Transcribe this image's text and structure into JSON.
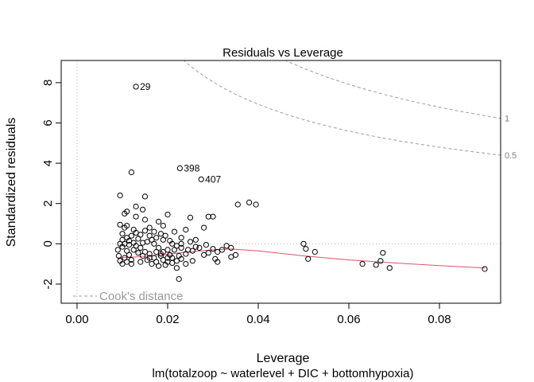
{
  "chart_data": {
    "type": "scatter",
    "title": "Residuals vs Leverage",
    "xlabel": "Leverage",
    "ylabel": "Standardized residuals",
    "subtitle": "lm(totalzoop ~ waterlevel + DIC + bottomhypoxia)",
    "xlim": [
      -0.0035,
      0.0935
    ],
    "ylim": [
      -2.95,
      9.1
    ],
    "xticks": [
      {
        "value": 0,
        "label": "0.00"
      },
      {
        "value": 0.02,
        "label": "0.02"
      },
      {
        "value": 0.04,
        "label": "0.04"
      },
      {
        "value": 0.06,
        "label": "0.06"
      },
      {
        "value": 0.08,
        "label": "0.08"
      }
    ],
    "yticks": [
      {
        "value": -2,
        "label": "-2"
      },
      {
        "value": 0,
        "label": "0"
      },
      {
        "value": 2,
        "label": "2"
      },
      {
        "value": 4,
        "label": "4"
      },
      {
        "value": 6,
        "label": "6"
      },
      {
        "value": 8,
        "label": "8"
      }
    ],
    "point_labels": [
      {
        "x": 0.013,
        "y": 7.8,
        "label": "29"
      },
      {
        "x": 0.0227,
        "y": 3.75,
        "label": "398"
      },
      {
        "x": 0.0274,
        "y": 3.2,
        "label": "407"
      }
    ],
    "cooks_distance": {
      "legend": "Cook's distance",
      "level_labels": [
        "0.5",
        "1"
      ],
      "p": 4,
      "color": "#9e9e9e"
    },
    "smooth": {
      "color": "#df536b",
      "x": [
        0.009,
        0.012,
        0.015,
        0.018,
        0.02,
        0.023,
        0.026,
        0.03,
        0.034,
        0.04,
        0.05,
        0.06,
        0.07,
        0.08,
        0.09
      ],
      "y": [
        -0.7,
        -0.67,
        -0.62,
        -0.58,
        -0.52,
        -0.44,
        -0.38,
        -0.3,
        -0.26,
        -0.35,
        -0.6,
        -0.8,
        -0.95,
        -1.08,
        -1.2
      ]
    },
    "points": [
      [
        0.013,
        7.8
      ],
      [
        0.0227,
        3.75
      ],
      [
        0.0274,
        3.2
      ],
      [
        0.012,
        3.55
      ],
      [
        0.0095,
        2.4
      ],
      [
        0.015,
        2.35
      ],
      [
        0.013,
        1.85
      ],
      [
        0.0145,
        1.7
      ],
      [
        0.011,
        1.6
      ],
      [
        0.0105,
        1.5
      ],
      [
        0.013,
        1.35
      ],
      [
        0.015,
        1.2
      ],
      [
        0.016,
        0.8
      ],
      [
        0.018,
        1.1
      ],
      [
        0.019,
        0.9
      ],
      [
        0.02,
        1.45
      ],
      [
        0.017,
        0.6
      ],
      [
        0.0175,
        0.3
      ],
      [
        0.0185,
        0.5
      ],
      [
        0.0165,
        0.2
      ],
      [
        0.0155,
        0.1
      ],
      [
        0.019,
        0.2
      ],
      [
        0.021,
        0.0
      ],
      [
        0.022,
        -0.1
      ],
      [
        0.0215,
        0.6
      ],
      [
        0.023,
        0.3
      ],
      [
        0.024,
        0.7
      ],
      [
        0.025,
        1.3
      ],
      [
        0.0262,
        0.2
      ],
      [
        0.029,
        1.35
      ],
      [
        0.03,
        1.35
      ],
      [
        0.028,
        0.8
      ],
      [
        0.025,
        0.1
      ],
      [
        0.023,
        -0.2
      ],
      [
        0.024,
        -0.5
      ],
      [
        0.0255,
        -0.35
      ],
      [
        0.027,
        -0.2
      ],
      [
        0.0285,
        -0.05
      ],
      [
        0.03,
        -0.25
      ],
      [
        0.031,
        -0.4
      ],
      [
        0.032,
        -0.3
      ],
      [
        0.033,
        -0.1
      ],
      [
        0.034,
        -0.2
      ],
      [
        0.035,
        -0.55
      ],
      [
        0.034,
        -0.65
      ],
      [
        0.0305,
        -0.75
      ],
      [
        0.031,
        -0.9
      ],
      [
        0.029,
        -0.45
      ],
      [
        0.028,
        -0.55
      ],
      [
        0.023,
        -0.75
      ],
      [
        0.0225,
        -0.6
      ],
      [
        0.022,
        -0.85
      ],
      [
        0.021,
        -0.7
      ],
      [
        0.0205,
        -0.55
      ],
      [
        0.02,
        -0.9
      ],
      [
        0.0195,
        -1.05
      ],
      [
        0.019,
        -0.8
      ],
      [
        0.0185,
        -0.6
      ],
      [
        0.018,
        -1.1
      ],
      [
        0.0175,
        -0.9
      ],
      [
        0.017,
        -0.7
      ],
      [
        0.0165,
        -1.0
      ],
      [
        0.016,
        -0.5
      ],
      [
        0.0155,
        -0.8
      ],
      [
        0.015,
        -0.4
      ],
      [
        0.0145,
        -0.6
      ],
      [
        0.014,
        -0.2
      ],
      [
        0.0135,
        -0.45
      ],
      [
        0.013,
        -0.1
      ],
      [
        0.0125,
        -0.3
      ],
      [
        0.012,
        -0.8
      ],
      [
        0.0115,
        -0.55
      ],
      [
        0.011,
        -0.35
      ],
      [
        0.0105,
        -0.7
      ],
      [
        0.01,
        -1.0
      ],
      [
        0.0095,
        -0.85
      ],
      [
        0.0092,
        -0.6
      ],
      [
        0.009,
        -0.3
      ],
      [
        0.0095,
        0.0
      ],
      [
        0.01,
        0.2
      ],
      [
        0.0105,
        0.0
      ],
      [
        0.011,
        0.3
      ],
      [
        0.0115,
        0.15
      ],
      [
        0.012,
        0.4
      ],
      [
        0.0125,
        0.05
      ],
      [
        0.013,
        0.55
      ],
      [
        0.0135,
        0.25
      ],
      [
        0.014,
        0.45
      ],
      [
        0.0145,
        0.05
      ],
      [
        0.015,
        0.65
      ],
      [
        0.01,
        0.5
      ],
      [
        0.0105,
        0.8
      ],
      [
        0.011,
        0.9
      ],
      [
        0.0095,
        0.95
      ],
      [
        0.01,
        -0.15
      ],
      [
        0.0115,
        -0.05
      ],
      [
        0.0125,
        0.7
      ],
      [
        0.016,
        0.4
      ],
      [
        0.017,
        0.0
      ],
      [
        0.018,
        -0.2
      ],
      [
        0.019,
        -0.4
      ],
      [
        0.02,
        -0.7
      ],
      [
        0.021,
        -0.95
      ],
      [
        0.022,
        -1.2
      ],
      [
        0.0225,
        -1.75
      ],
      [
        0.0215,
        -0.3
      ],
      [
        0.0205,
        0.15
      ],
      [
        0.0195,
        0.4
      ],
      [
        0.024,
        -1.0
      ],
      [
        0.0255,
        -0.85
      ],
      [
        0.0262,
        -0.15
      ],
      [
        0.012,
        -1.0
      ],
      [
        0.011,
        -0.9
      ],
      [
        0.014,
        -0.9
      ],
      [
        0.016,
        -0.7
      ],
      [
        0.0175,
        -0.4
      ],
      [
        0.0185,
        -0.5
      ],
      [
        0.02,
        -0.3
      ],
      [
        0.023,
        0.0
      ],
      [
        0.0245,
        -0.3
      ],
      [
        0.0355,
        1.95
      ],
      [
        0.038,
        2.05
      ],
      [
        0.0395,
        1.95
      ],
      [
        0.05,
        0.0
      ],
      [
        0.0505,
        -0.25
      ],
      [
        0.051,
        -0.75
      ],
      [
        0.0525,
        -0.4
      ],
      [
        0.063,
        -1.0
      ],
      [
        0.066,
        -1.05
      ],
      [
        0.067,
        -0.85
      ],
      [
        0.0675,
        -0.45
      ],
      [
        0.069,
        -1.2
      ],
      [
        0.09,
        -1.25
      ]
    ]
  }
}
